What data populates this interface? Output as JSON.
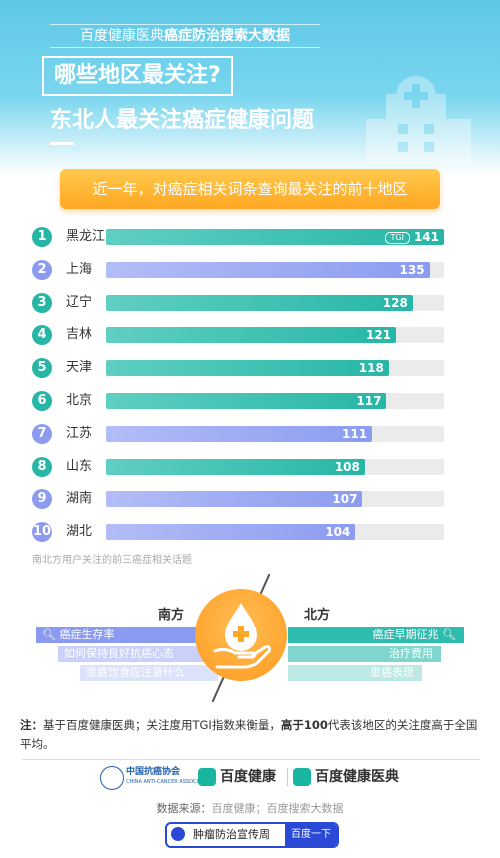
{
  "header": {
    "top_line_prefix": "百度健康医典",
    "top_line_bold": "癌症防治搜索大数据",
    "question": "哪些地区最关注?",
    "headline": "东北人最关注癌症健康问题"
  },
  "banner": "近一年，对癌症相关词条查询最关注的前十地区",
  "chart_data": {
    "type": "bar",
    "orientation": "horizontal",
    "categories": [
      "黑龙江",
      "上海",
      "辽宁",
      "吉林",
      "天津",
      "北京",
      "江苏",
      "山东",
      "湖南",
      "湖北"
    ],
    "ranks": [
      "1",
      "2",
      "3",
      "4",
      "5",
      "6",
      "7",
      "8",
      "9",
      "10"
    ],
    "values": [
      141,
      135,
      128,
      121,
      118,
      117,
      111,
      108,
      107,
      104
    ],
    "region_group": [
      "north",
      "south",
      "north",
      "north",
      "north",
      "north",
      "south",
      "north",
      "south",
      "south"
    ],
    "value_label_tag": "TGI",
    "xlim": [
      0,
      141
    ],
    "colors": {
      "north": "#27b6a6",
      "south": "#8c9bf0",
      "track": "#ebebeb"
    }
  },
  "chart_note": "南北方用户关注的前三癌症相关话题",
  "compare": {
    "south_label": "南方",
    "north_label": "北方",
    "south_topics": [
      "癌症生存率",
      "如何保持良好抗癌心态",
      "患癌饮食应注意什么"
    ],
    "north_topics": [
      "癌症早期征兆",
      "治疗费用",
      "患癌表现"
    ]
  },
  "footnote": {
    "prefix": "注：",
    "text1": "基于百度健康医典；关注度用TGI指数来衡量，",
    "bold": "高于100",
    "text2": "代表该地区的关注度高于全国平均。"
  },
  "logos": {
    "assoc_name": "中国抗癌协会",
    "assoc_sub": "CHINA ANTI-CANCER ASSOCIATION",
    "brand1": "百度健康",
    "brand2": "百度健康医典"
  },
  "source": {
    "label": "数据来源：",
    "value": "百度健康；百度搜索大数据"
  },
  "searchbar": {
    "query": "肿瘤防治宣传周",
    "button": "百度一下"
  }
}
